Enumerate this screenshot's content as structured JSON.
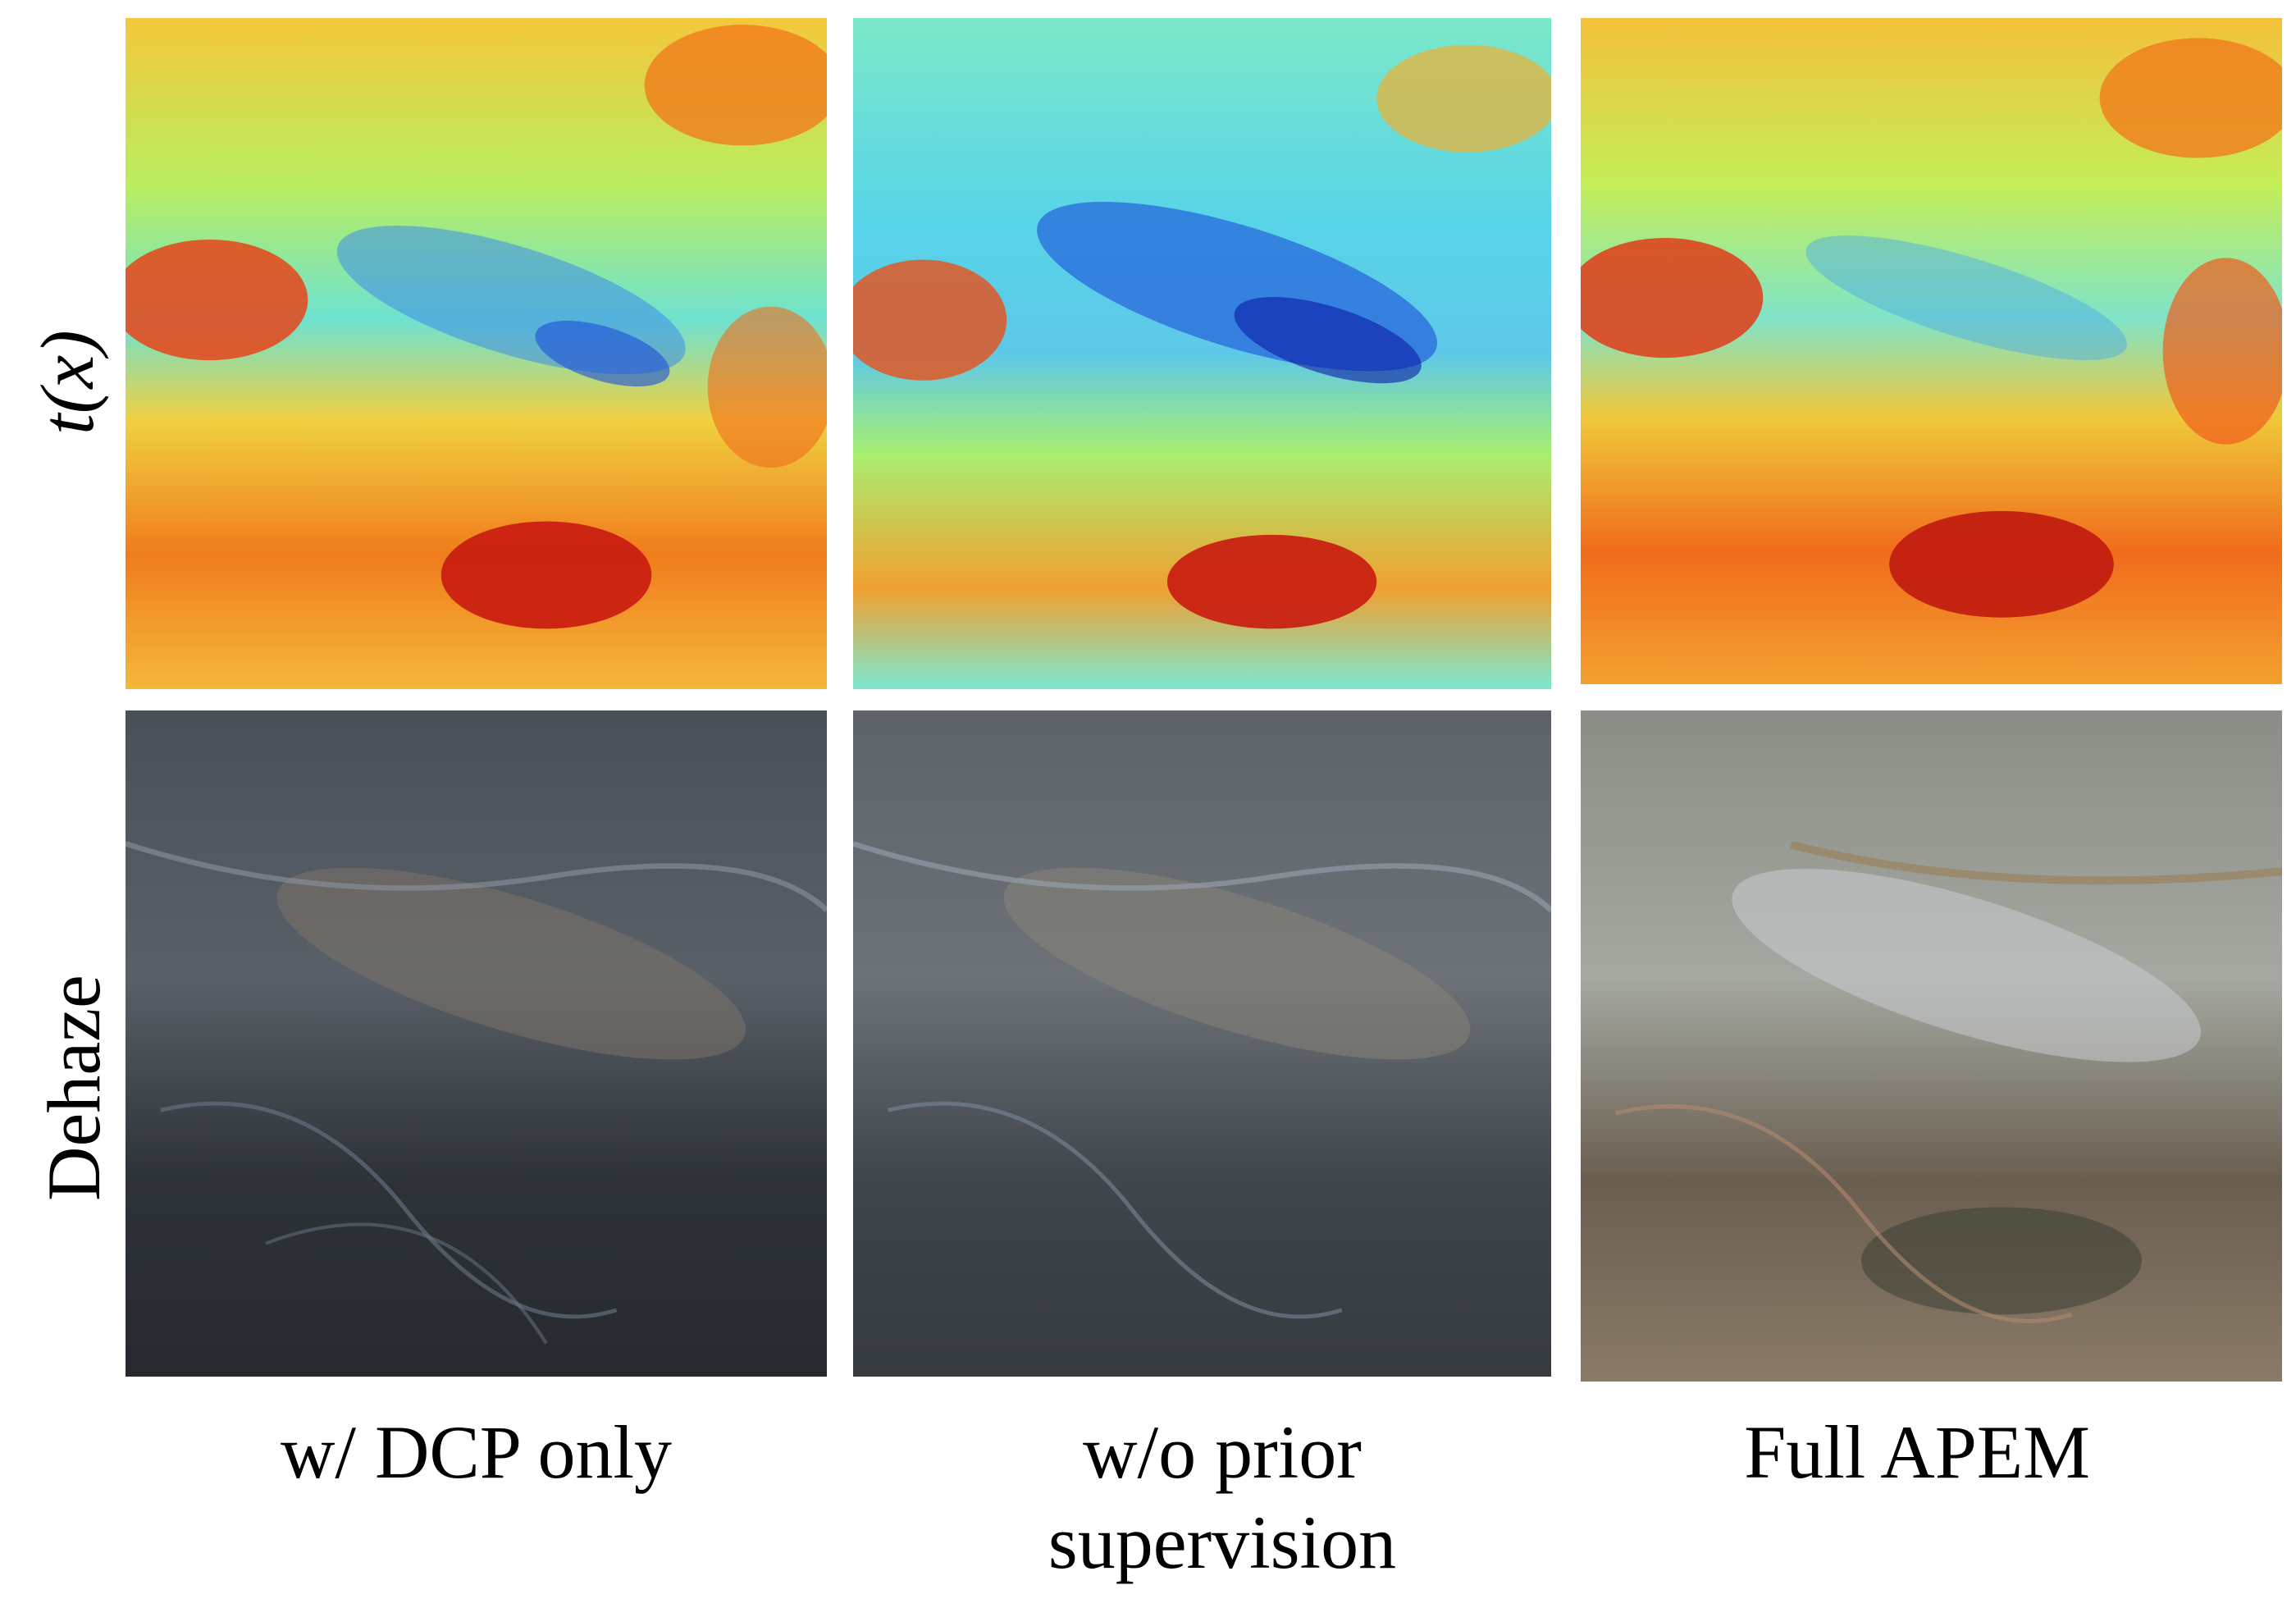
{
  "row_labels": {
    "transmission": "t(x)",
    "dehaze": "Dehaze"
  },
  "columns": [
    {
      "label_line1": "w/  DCP only",
      "label_line2": ""
    },
    {
      "label_line1": "w/o  prior",
      "label_line2": "supervision"
    },
    {
      "label_line1": "Full APEM",
      "label_line2": ""
    }
  ],
  "colors": {
    "jet_red": "#d41c10",
    "jet_orange": "#f07c1c",
    "jet_yellow": "#f4e040",
    "jet_cyan": "#5ee8d8",
    "jet_blue": "#1a4fd8",
    "sat_dark": "#2a3036",
    "sat_light": "#8a8f86"
  }
}
